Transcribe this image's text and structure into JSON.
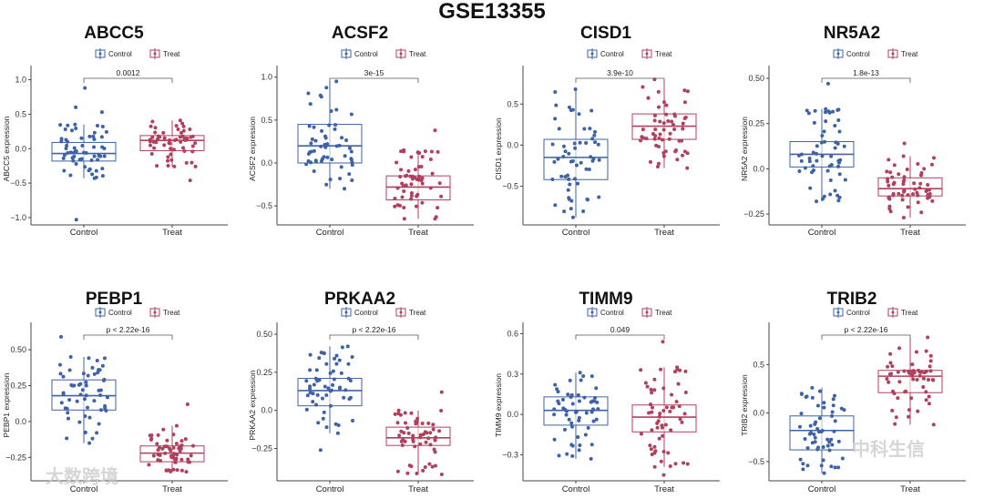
{
  "colors": {
    "control": "#3e62a8",
    "treat": "#b1405c",
    "axis": "#444444"
  },
  "watermarks": [
    "大数跨境",
    "中科生信"
  ],
  "chart_data": {
    "type": "boxplot",
    "title": "GSE13355",
    "groups": [
      "Control",
      "Treat"
    ],
    "legend": {
      "placement": "top",
      "entries": [
        "Control",
        "Treat"
      ]
    },
    "panels": [
      {
        "title": "ABCC5",
        "ylabel": "ABCC5 expression",
        "pvalue": "0.0012",
        "ylim": [
          -1.08,
          1.1
        ],
        "ticks": [
          -1.0,
          -0.5,
          0.0,
          0.5,
          1.0
        ],
        "control": {
          "min": -0.43,
          "q1": -0.18,
          "median": -0.07,
          "q3": 0.09,
          "max": 0.35,
          "outliers": [
            0.88,
            0.6,
            0.53,
            -1.03
          ]
        },
        "treat": {
          "min": -0.26,
          "q1": -0.03,
          "median": 0.12,
          "q3": 0.19,
          "max": 0.41,
          "outliers": [
            -0.46
          ]
        }
      },
      {
        "title": "ACSF2",
        "ylabel": "ACSF2 expression",
        "pvalue": "3e-15",
        "ylim": [
          -0.7,
          1.05
        ],
        "ticks": [
          -0.5,
          0.0,
          0.5,
          1.0
        ],
        "control": {
          "min": -0.3,
          "q1": 0.0,
          "median": 0.2,
          "q3": 0.45,
          "max": 0.95,
          "outliers": []
        },
        "treat": {
          "min": -0.65,
          "q1": -0.43,
          "median": -0.28,
          "q3": -0.15,
          "max": 0.15,
          "outliers": [
            0.38
          ]
        }
      },
      {
        "title": "CISD1",
        "ylabel": "CISD1 expression",
        "pvalue": "3.9e-10",
        "ylim": [
          -0.95,
          0.88
        ],
        "ticks": [
          -0.5,
          0.0,
          0.5
        ],
        "control": {
          "min": -0.88,
          "q1": -0.42,
          "median": -0.15,
          "q3": 0.07,
          "max": 0.68,
          "outliers": []
        },
        "treat": {
          "min": -0.28,
          "q1": 0.07,
          "median": 0.23,
          "q3": 0.38,
          "max": 0.8,
          "outliers": []
        }
      },
      {
        "title": "NR5A2",
        "ylabel": "NR5A2 expression",
        "pvalue": "1.8e-13",
        "ylim": [
          -0.3,
          0.53
        ],
        "ticks": [
          -0.25,
          0.0,
          0.25,
          0.5
        ],
        "control": {
          "min": -0.18,
          "q1": 0.01,
          "median": 0.08,
          "q3": 0.15,
          "max": 0.33,
          "outliers": [
            0.47
          ]
        },
        "treat": {
          "min": -0.27,
          "q1": -0.15,
          "median": -0.11,
          "q3": -0.05,
          "max": 0.07,
          "outliers": [
            0.14
          ]
        }
      },
      {
        "title": "PEBP1",
        "ylabel": "PEBP1 expression",
        "pvalue": "p < 2.22e-16",
        "ylim": [
          -0.4,
          0.64
        ],
        "ticks": [
          -0.25,
          0.0,
          0.25,
          0.5
        ],
        "control": {
          "min": -0.15,
          "q1": 0.08,
          "median": 0.18,
          "q3": 0.29,
          "max": 0.45,
          "outliers": [
            0.59
          ]
        },
        "treat": {
          "min": -0.35,
          "q1": -0.28,
          "median": -0.22,
          "q3": -0.17,
          "max": -0.03,
          "outliers": [
            0.12
          ]
        }
      },
      {
        "title": "PRKAA2",
        "ylabel": "PRKAA2 expression",
        "pvalue": "p < 2.22e-16",
        "ylim": [
          -0.45,
          0.53
        ],
        "ticks": [
          -0.25,
          0.0,
          0.25,
          0.5
        ],
        "control": {
          "min": -0.15,
          "q1": 0.03,
          "median": 0.13,
          "q3": 0.21,
          "max": 0.42,
          "outliers": [
            -0.26
          ]
        },
        "treat": {
          "min": -0.42,
          "q1": -0.23,
          "median": -0.18,
          "q3": -0.11,
          "max": 0.0,
          "outliers": [
            0.12
          ]
        }
      },
      {
        "title": "TIMM9",
        "ylabel": "TIMM9 expression",
        "pvalue": "0.049",
        "ylim": [
          -0.48,
          0.63
        ],
        "ticks": [
          -0.3,
          0.0,
          0.3,
          0.6
        ],
        "control": {
          "min": -0.33,
          "q1": -0.08,
          "median": 0.03,
          "q3": 0.13,
          "max": 0.31,
          "outliers": []
        },
        "treat": {
          "min": -0.39,
          "q1": -0.13,
          "median": -0.02,
          "q3": 0.07,
          "max": 0.35,
          "outliers": [
            0.54,
            -0.45
          ]
        }
      },
      {
        "title": "TRIB2",
        "ylabel": "TRIB2 expression",
        "pvalue": "p < 2.22e-16",
        "ylim": [
          -0.68,
          0.86
        ],
        "ticks": [
          -0.5,
          0.0,
          0.5
        ],
        "control": {
          "min": -0.62,
          "q1": -0.38,
          "median": -0.18,
          "q3": -0.03,
          "max": 0.26,
          "outliers": []
        },
        "treat": {
          "min": -0.12,
          "q1": 0.21,
          "median": 0.38,
          "q3": 0.44,
          "max": 0.78,
          "outliers": []
        }
      }
    ]
  }
}
